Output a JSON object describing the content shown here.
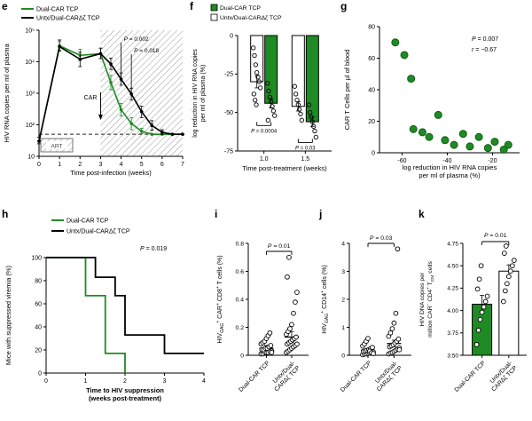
{
  "colors": {
    "green": "#1f8b24",
    "green_dark": "#0e5c12",
    "black": "#000000",
    "hatch": "#9a9a9a"
  },
  "chart_data": [
    {
      "letter": "e",
      "type": "line-log",
      "xlabel": "Time post-infection (weeks)",
      "ylabel": "HIV RNA copies per ml of plasma",
      "xlim": [
        0,
        7
      ],
      "xticks": [
        0,
        1,
        2,
        3,
        4,
        5,
        6,
        7
      ],
      "ylog_range": [
        1,
        5
      ],
      "ytick_labels": [
        "10",
        "10²",
        "10³",
        "10⁴",
        "10⁵"
      ],
      "detection_limit": 50,
      "art_label": "ART",
      "car_label": "CAR",
      "car_x": 3,
      "treat_region": [
        3,
        7
      ],
      "legend": [
        {
          "label": "Dual-CAR TCP",
          "color": "green"
        },
        {
          "label": "Untx/Dual-CARΔζ TCP",
          "color": "black"
        }
      ],
      "p_annotations": [
        {
          "text": "P = 0.002",
          "x": 4.0,
          "drop_to": 3000
        },
        {
          "text": "P = 0.018",
          "x": 4.5,
          "drop_to": 900
        }
      ],
      "series": [
        {
          "name": "Dual-CAR TCP",
          "color": "green",
          "x": [
            0,
            1,
            2,
            3,
            3.5,
            4,
            4.5,
            5,
            5.5,
            6,
            6.5,
            7
          ],
          "y": [
            30,
            32000,
            16000,
            18000,
            2200,
            300,
            110,
            62,
            50,
            50,
            50,
            50
          ],
          "yerr_hi": [
            10,
            18000,
            9000,
            9000,
            1500,
            180,
            60,
            15,
            0,
            0,
            0,
            0
          ],
          "yerr_lo": [
            5,
            9000,
            5000,
            5500,
            900,
            110,
            40,
            10,
            0,
            0,
            0,
            0
          ]
        },
        {
          "name": "Untx/Dual-CARΔζ TCP",
          "color": "black",
          "x": [
            0,
            1,
            2,
            3,
            3.5,
            4,
            4.5,
            5,
            5.5,
            6,
            6.5,
            7
          ],
          "y": [
            30,
            30000,
            12000,
            18000,
            8500,
            2800,
            950,
            260,
            95,
            58,
            50,
            50
          ],
          "yerr_hi": [
            10,
            16000,
            8000,
            9000,
            4500,
            1600,
            500,
            130,
            40,
            12,
            0,
            0
          ],
          "yerr_lo": [
            5,
            8000,
            5000,
            5500,
            2800,
            1000,
            330,
            90,
            28,
            8,
            0,
            0
          ]
        }
      ]
    },
    {
      "letter": "f",
      "type": "grouped-bar-neg",
      "xlabel": "Time post-treatment (weeks)",
      "ylabel_lines": [
        "log reduction in HIV RNA copies",
        "per ml of plasma (%)"
      ],
      "ylim": [
        0,
        -75
      ],
      "yticks": [
        0,
        -25,
        -50,
        -75
      ],
      "categories": [
        "1.0",
        "1.5"
      ],
      "legend": [
        {
          "label": "Dual-CAR TCP",
          "fill": "green"
        },
        {
          "label": "Untx/Dual-CARΔζ TCP",
          "fill": "white"
        }
      ],
      "groups": [
        {
          "category": "1.0",
          "p_text": "P = 0.0004",
          "bars": [
            {
              "fill": "white",
              "value": -30,
              "err": 4,
              "points": [
                -8,
                -13,
                -19,
                -24,
                -27,
                -30,
                -34,
                -38,
                -42,
                -45
              ]
            },
            {
              "fill": "green",
              "value": -44,
              "err": 3,
              "points": [
                -31,
                -36,
                -40,
                -43,
                -46,
                -49,
                -52,
                -55
              ]
            }
          ]
        },
        {
          "category": "1.5",
          "p_text": "P = 0.03",
          "bars": [
            {
              "fill": "white",
              "value": -46,
              "err": 3,
              "points": [
                -33,
                -38,
                -42,
                -45,
                -48,
                -51,
                -55
              ]
            },
            {
              "fill": "green",
              "value": -56,
              "err": 3,
              "points": [
                -45,
                -50,
                -53,
                -56,
                -59,
                -62,
                -66
              ]
            }
          ]
        }
      ]
    },
    {
      "letter": "g",
      "type": "scatter",
      "xlabel_lines": [
        "log reduction in HIV RNA copies",
        "per ml of plasma (%)"
      ],
      "ylabel": "CAR T Cells per µl of blood",
      "xlim": [
        -70,
        -8
      ],
      "xticks": [
        -60,
        -40,
        -20
      ],
      "ylim": [
        0,
        80
      ],
      "yticks": [
        0,
        20,
        40,
        60,
        80
      ],
      "annotation_lines": [
        "P = 0.007",
        "r = −0.67"
      ],
      "points": [
        [
          -63,
          70
        ],
        [
          -59,
          62
        ],
        [
          -56,
          47
        ],
        [
          -55,
          15
        ],
        [
          -51,
          13
        ],
        [
          -48,
          10
        ],
        [
          -44,
          24
        ],
        [
          -41,
          8
        ],
        [
          -37,
          5
        ],
        [
          -33,
          12
        ],
        [
          -30,
          4
        ],
        [
          -26,
          10
        ],
        [
          -22,
          3
        ],
        [
          -19,
          7
        ],
        [
          -15,
          2
        ],
        [
          -13,
          5
        ]
      ]
    },
    {
      "letter": "h",
      "type": "step",
      "xlabel_lines": [
        "Time to HIV suppression",
        "(weeks post-treatment)"
      ],
      "ylabel": "Mice with suppressed viremia (%)",
      "xlim": [
        0,
        4
      ],
      "xticks": [
        0,
        1,
        2,
        3,
        4
      ],
      "ylim": [
        0,
        100
      ],
      "yticks": [
        0,
        20,
        40,
        60,
        80,
        100
      ],
      "annotation": "P = 0.019",
      "legend": [
        {
          "label": "Dual-CAR TCP",
          "color": "green"
        },
        {
          "label": "Untx/Dual-CARΔζ TCP",
          "color": "black"
        }
      ],
      "series": [
        {
          "name": "Dual-CAR TCP",
          "color": "green",
          "points": [
            [
              0,
              100
            ],
            [
              1,
              100
            ],
            [
              1,
              67
            ],
            [
              1.5,
              67
            ],
            [
              1.5,
              17
            ],
            [
              2,
              17
            ],
            [
              2,
              0
            ]
          ]
        },
        {
          "name": "Untx/Dual-CARΔζ TCP",
          "color": "black",
          "points": [
            [
              0,
              100
            ],
            [
              1.25,
              100
            ],
            [
              1.25,
              83
            ],
            [
              1.75,
              83
            ],
            [
              1.75,
              67
            ],
            [
              2,
              67
            ],
            [
              2,
              33
            ],
            [
              3,
              33
            ],
            [
              3,
              17
            ],
            [
              4,
              17
            ]
          ]
        }
      ]
    },
    {
      "letter": "i",
      "type": "dot-columns",
      "ylabel_rich": [
        {
          "t": "HIV"
        },
        {
          "t": "GAG",
          "sub": true
        },
        {
          "t": "+",
          "sup": true
        },
        {
          "t": " CAR"
        },
        {
          "t": "+",
          "sup": true
        },
        {
          "t": " CD8"
        },
        {
          "t": "+",
          "sup": true
        },
        {
          "t": " T cells (%)"
        }
      ],
      "ylim": [
        0,
        0.8
      ],
      "yticks": [
        0,
        0.2,
        0.4,
        0.6,
        0.8
      ],
      "ytick_labels": [
        "0",
        "0.2",
        "0.4",
        "0.6",
        "0.8"
      ],
      "p_text": "P = 0.01",
      "categories": [
        [
          "Dual-CAR TCP"
        ],
        [
          "Untx/Dual-",
          "CARΔζ TCP"
        ]
      ],
      "groups": [
        {
          "mean": 0.05,
          "err": 0.02,
          "points": [
            0.01,
            0.01,
            0.02,
            0.02,
            0.02,
            0.03,
            0.03,
            0.04,
            0.04,
            0.05,
            0.05,
            0.06,
            0.07,
            0.08,
            0.09,
            0.1,
            0.12,
            0.14,
            0.16,
            0.02
          ]
        },
        {
          "mean": 0.13,
          "err": 0.04,
          "points": [
            0.02,
            0.03,
            0.04,
            0.05,
            0.06,
            0.07,
            0.08,
            0.08,
            0.09,
            0.1,
            0.11,
            0.12,
            0.13,
            0.15,
            0.17,
            0.19,
            0.22,
            0.3,
            0.38,
            0.45,
            0.56,
            0.7
          ]
        }
      ]
    },
    {
      "letter": "j",
      "type": "dot-columns",
      "ylabel_rich": [
        {
          "t": "HIV"
        },
        {
          "t": "GAG",
          "sub": true
        },
        {
          "t": "+",
          "sup": true
        },
        {
          "t": " CD14"
        },
        {
          "t": "+",
          "sup": true
        },
        {
          "t": " cells (%)"
        }
      ],
      "ylim": [
        0,
        4
      ],
      "yticks": [
        0,
        1,
        2,
        3,
        4
      ],
      "ytick_labels": [
        "0",
        "1",
        "2",
        "3",
        "4"
      ],
      "p_text": "P = 0.03",
      "categories": [
        [
          "Dual-CAR TCP"
        ],
        [
          "Untx/Dual-",
          "CARΔζ TCP"
        ]
      ],
      "groups": [
        {
          "mean": 0.18,
          "err": 0.05,
          "points": [
            0.02,
            0.04,
            0.05,
            0.07,
            0.08,
            0.1,
            0.12,
            0.14,
            0.16,
            0.18,
            0.2,
            0.24,
            0.28,
            0.33,
            0.4,
            0.5,
            0.6,
            0.15,
            0.09,
            0.06
          ]
        },
        {
          "mean": 0.42,
          "err": 0.12,
          "points": [
            0.05,
            0.08,
            0.1,
            0.14,
            0.18,
            0.22,
            0.26,
            0.3,
            0.34,
            0.38,
            0.44,
            0.5,
            0.58,
            0.68,
            0.8,
            0.95,
            1.15,
            1.5,
            3.8,
            0.2
          ]
        }
      ]
    },
    {
      "letter": "k",
      "type": "bar-points",
      "ylabel_rich_lines": [
        [
          {
            "t": "HIV DNA copies per"
          }
        ],
        [
          {
            "t": "million CAR"
          },
          {
            "t": "−",
            "sup": true
          },
          {
            "t": " CD4"
          },
          {
            "t": "+",
            "sup": true
          },
          {
            "t": " T"
          },
          {
            "t": "CM",
            "sub": true
          },
          {
            "t": " cells"
          }
        ]
      ],
      "ylim": [
        3.5,
        4.75
      ],
      "yticks": [
        3.5,
        3.75,
        4.0,
        4.25,
        4.5,
        4.75
      ],
      "ytick_labels": [
        "3.50",
        "3.75",
        "4.00",
        "4.25",
        "4.50",
        "4.75"
      ],
      "p_text": "P = 0.01",
      "categories": [
        [
          "Dual-CAR TCP"
        ],
        [
          "Untx/Dual-",
          "CARΔζ TCP"
        ]
      ],
      "bars": [
        {
          "fill": "green",
          "value": 4.07,
          "err": 0.1,
          "points": [
            3.62,
            3.78,
            3.9,
            3.98,
            4.04,
            4.1,
            4.16,
            4.24,
            4.35,
            4.5
          ]
        },
        {
          "fill": "white",
          "value": 4.44,
          "err": 0.07,
          "points": [
            4.1,
            4.22,
            4.3,
            4.38,
            4.44,
            4.5,
            4.56,
            4.64,
            4.72
          ]
        }
      ]
    }
  ]
}
